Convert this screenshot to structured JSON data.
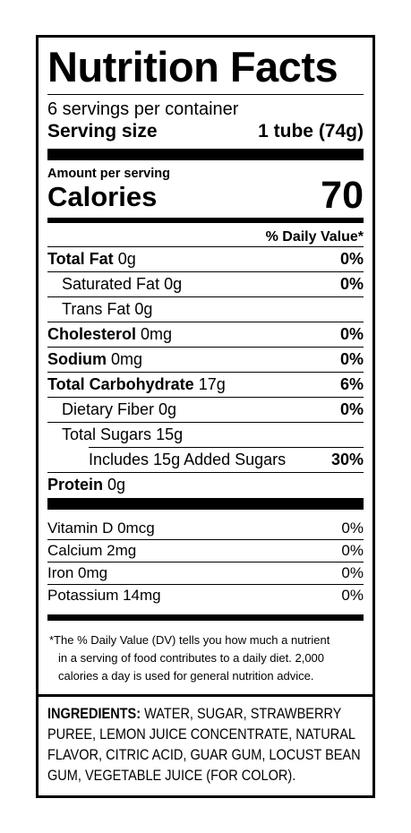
{
  "label": {
    "title": "Nutrition Facts",
    "servings_per_container": "6 servings per container",
    "serving_size_label": "Serving size",
    "serving_size_value": "1 tube (74g)",
    "amount_per_serving": "Amount per serving",
    "calories_label": "Calories",
    "calories_value": "70",
    "daily_value_header": "% Daily Value*",
    "nutrients": [
      {
        "name": "Total Fat",
        "amount": "0g",
        "dv": "0%"
      },
      {
        "name": "Saturated Fat",
        "amount": "0g",
        "dv": "0%"
      },
      {
        "name": "Trans Fat",
        "amount": "0g",
        "dv": ""
      },
      {
        "name": "Cholesterol",
        "amount": "0mg",
        "dv": "0%"
      },
      {
        "name": "Sodium",
        "amount": "0mg",
        "dv": "0%"
      },
      {
        "name": "Total Carbohydrate",
        "amount": "17g",
        "dv": "6%"
      },
      {
        "name": "Dietary Fiber",
        "amount": "0g",
        "dv": "0%"
      },
      {
        "name": "Total Sugars",
        "amount": "15g",
        "dv": ""
      },
      {
        "name": "Includes 15g Added Sugars",
        "amount": "",
        "dv": "30%"
      },
      {
        "name": "Protein",
        "amount": "0g",
        "dv": ""
      }
    ],
    "vitamins": [
      {
        "name": "Vitamin D 0mcg",
        "dv": "0%"
      },
      {
        "name": "Calcium 2mg",
        "dv": "0%"
      },
      {
        "name": "Iron 0mg",
        "dv": "0%"
      },
      {
        "name": "Potassium 14mg",
        "dv": "0%"
      }
    ],
    "footnote": [
      "*The % Daily Value (DV) tells you how much a nutrient",
      "in a serving of food contributes to a daily diet. 2,000",
      "calories a day is used for general nutrition advice."
    ],
    "ingredients_label": "INGREDIENTS:",
    "ingredients_text": "WATER, SUGAR, STRAWBERRY PUREE, LEMON JUICE CONCENTRATE, NATURAL FLAVOR, CITRIC ACID, GUAR GUM, LOCUST BEAN GUM, VEGETABLE JUICE (FOR COLOR)."
  }
}
